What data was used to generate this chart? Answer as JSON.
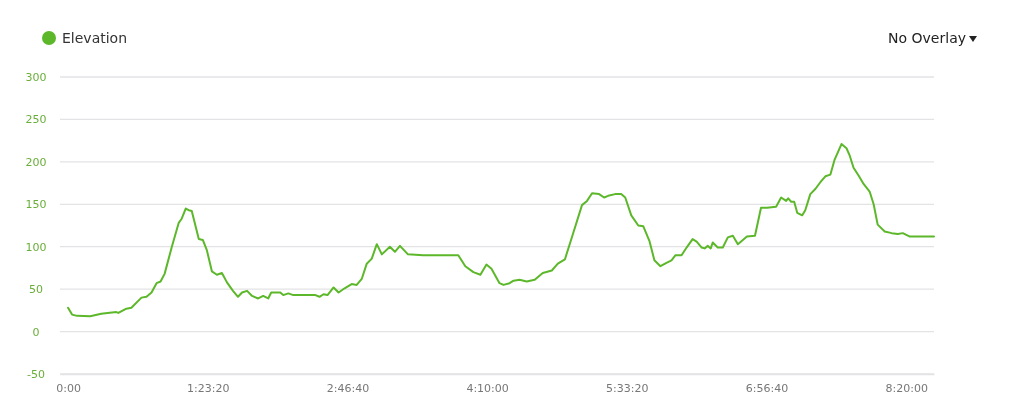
{
  "chart_data": {
    "type": "line",
    "annotations": [
      "No Overlay"
    ],
    "legend": "top left",
    "grid": "y",
    "marker": "none",
    "line_style": "solid",
    "xlim": [
      -0.08,
      8.61
    ],
    "ylim": [
      -50,
      300
    ],
    "xticks": [
      {
        "value": 0,
        "label": "0:00"
      },
      {
        "value": 1.388889,
        "label": "1:23:20"
      },
      {
        "value": 2.777778,
        "label": "2:46:40"
      },
      {
        "value": 4.166667,
        "label": "4:10:00"
      },
      {
        "value": 5.555556,
        "label": "5:33:20"
      },
      {
        "value": 6.944444,
        "label": "6:56:40"
      },
      {
        "value": 8.333333,
        "label": "8:20:00"
      }
    ],
    "yticks": [
      -50,
      0,
      50,
      100,
      150,
      200,
      250,
      300
    ],
    "series": [
      {
        "name": "Elevation",
        "color": "#5cb82a",
        "x": [
          0,
          0.04,
          0.09,
          0.22,
          0.33,
          0.48,
          0.5,
          0.58,
          0.63,
          0.73,
          0.78,
          0.83,
          0.88,
          0.92,
          0.96,
          1.03,
          1.1,
          1.13,
          1.17,
          1.2,
          1.23,
          1.3,
          1.34,
          1.38,
          1.43,
          1.48,
          1.53,
          1.58,
          1.64,
          1.69,
          1.73,
          1.78,
          1.83,
          1.89,
          1.94,
          1.99,
          2.02,
          2.11,
          2.14,
          2.19,
          2.24,
          2.46,
          2.5,
          2.54,
          2.58,
          2.64,
          2.69,
          2.75,
          2.82,
          2.87,
          2.92,
          2.97,
          3.02,
          3.07,
          3.12,
          3.2,
          3.25,
          3.3,
          3.38,
          3.53,
          3.88,
          3.95,
          4.03,
          4.1,
          4.16,
          4.21,
          4.29,
          4.33,
          4.39,
          4.43,
          4.49,
          4.56,
          4.64,
          4.72,
          4.81,
          4.87,
          4.94,
          5.02,
          5.11,
          5.16,
          5.21,
          5.28,
          5.33,
          5.37,
          5.44,
          5.5,
          5.54,
          5.6,
          5.67,
          5.72,
          5.78,
          5.83,
          5.89,
          5.95,
          6,
          6.04,
          6.1,
          6.15,
          6.21,
          6.25,
          6.3,
          6.33,
          6.36,
          6.39,
          6.41,
          6.46,
          6.51,
          6.56,
          6.61,
          6.66,
          6.75,
          6.83,
          6.89,
          6.95,
          7.04,
          7.09,
          7.14,
          7.16,
          7.19,
          7.22,
          7.25,
          7.3,
          7.33,
          7.38,
          7.43,
          7.48,
          7.53,
          7.58,
          7.62,
          7.69,
          7.74,
          7.77,
          7.81,
          7.86,
          7.91,
          7.97,
          8.01,
          8.05,
          8.12,
          8.19,
          8.25,
          8.3,
          8.37,
          8.61
        ],
        "values": [
          28,
          20,
          18.5,
          18,
          21,
          23,
          22,
          27,
          28,
          40,
          41,
          46,
          57,
          59,
          68,
          99,
          128,
          133,
          145,
          143,
          142,
          109,
          108,
          96,
          71,
          67,
          69,
          58,
          48,
          41,
          46,
          48,
          42,
          39,
          42,
          39,
          46,
          46,
          43,
          45,
          43,
          43,
          41,
          44,
          43,
          52,
          46,
          51,
          56,
          55,
          62,
          80,
          86,
          103,
          91,
          100,
          94,
          101,
          91,
          90,
          90,
          77,
          70,
          67,
          79,
          74,
          57,
          55,
          57,
          60,
          61,
          59,
          61,
          69,
          72,
          80,
          85,
          115,
          149,
          154,
          163,
          162,
          158,
          160,
          162,
          162,
          158,
          137,
          125,
          124,
          107,
          84,
          77,
          81,
          84,
          90,
          90,
          99,
          109,
          106,
          99,
          98,
          101,
          98,
          105,
          99,
          99,
          111,
          113,
          103,
          112,
          113,
          146,
          146,
          147,
          158,
          154,
          157,
          153,
          153,
          140,
          137,
          143,
          162,
          168,
          176,
          183,
          185,
          202,
          221,
          216,
          208,
          193,
          184,
          174,
          165,
          150,
          126,
          118,
          116,
          115,
          116,
          112,
          112
        ]
      }
    ]
  }
}
